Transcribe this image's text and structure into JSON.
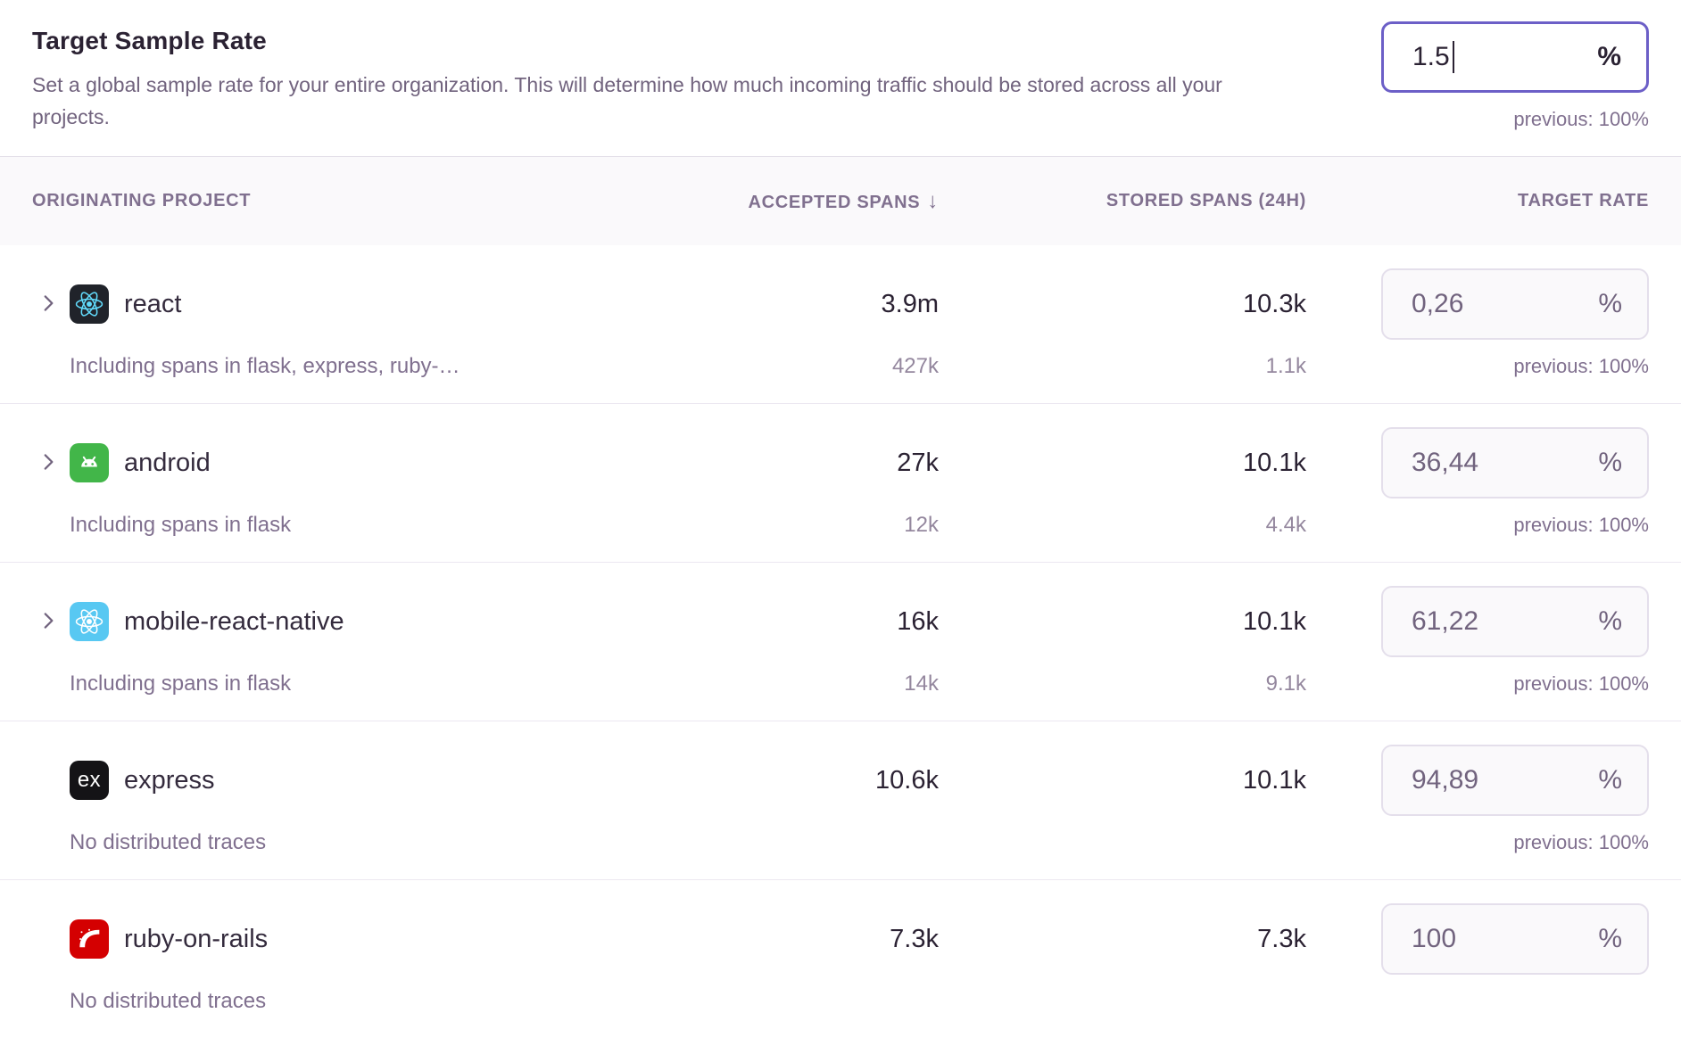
{
  "header": {
    "title": "Target Sample Rate",
    "description": "Set a global sample rate for your entire organization. This will determine how much incoming traffic should be stored across all your projects.",
    "input": {
      "value": "1.5",
      "suffix": "%"
    },
    "previous": "previous: 100%"
  },
  "colors": {
    "accent_purple": "#6c5fc7",
    "react_icon_bg": "#20232a",
    "react_logo": "#61dafb",
    "android_icon_bg": "#42b649",
    "react_native_icon_bg": "#58c8f2",
    "express_icon_bg": "#141316",
    "rails_icon_bg": "#d40001"
  },
  "table": {
    "columns": {
      "project": "ORIGINATING PROJECT",
      "accepted": "ACCEPTED SPANS",
      "accepted_sort_icon": "↓",
      "stored": "STORED SPANS (24H)",
      "rate": "TARGET RATE"
    },
    "rows": [
      {
        "project": "react",
        "icon": "react",
        "expandable": true,
        "accepted": "3.9m",
        "stored": "10.3k",
        "rate": "0,26",
        "rate_suffix": "%",
        "previous": "previous: 100%",
        "sub_label": "Including spans in flask, express, ruby-…",
        "sub_accepted": "427k",
        "sub_stored": "1.1k"
      },
      {
        "project": "android",
        "icon": "android",
        "expandable": true,
        "accepted": "27k",
        "stored": "10.1k",
        "rate": "36,44",
        "rate_suffix": "%",
        "previous": "previous: 100%",
        "sub_label": "Including spans in flask",
        "sub_accepted": "12k",
        "sub_stored": "4.4k"
      },
      {
        "project": "mobile-react-native",
        "icon": "react-native",
        "expandable": true,
        "accepted": "16k",
        "stored": "10.1k",
        "rate": "61,22",
        "rate_suffix": "%",
        "previous": "previous: 100%",
        "sub_label": "Including spans in flask",
        "sub_accepted": "14k",
        "sub_stored": "9.1k"
      },
      {
        "project": "express",
        "icon": "express",
        "expandable": false,
        "accepted": "10.6k",
        "stored": "10.1k",
        "rate": "94,89",
        "rate_suffix": "%",
        "previous": "previous: 100%",
        "sub_label": "No distributed traces",
        "sub_accepted": "",
        "sub_stored": ""
      },
      {
        "project": "ruby-on-rails",
        "icon": "rails",
        "expandable": false,
        "accepted": "7.3k",
        "stored": "7.3k",
        "rate": "100",
        "rate_suffix": "%",
        "previous": "",
        "sub_label": "No distributed traces",
        "sub_accepted": "",
        "sub_stored": ""
      }
    ]
  }
}
